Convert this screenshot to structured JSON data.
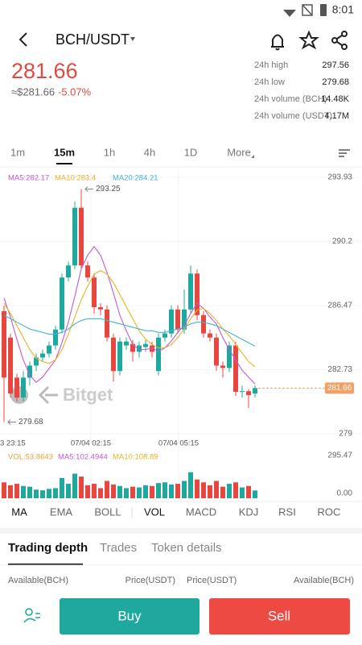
{
  "status_bar": {
    "time": "8:01"
  },
  "header": {
    "pair": "BCH/USDT"
  },
  "price": {
    "last": "281.66",
    "fiat": "≈$281.66",
    "change": "-5.07%"
  },
  "stats": [
    {
      "label": "24h high",
      "value": "297.56"
    },
    {
      "label": "24h low",
      "value": "279.68"
    },
    {
      "label": "24h volume (BCH)",
      "value": "14.48K"
    },
    {
      "label": "24h volume (USDT)",
      "value": "4.17M"
    }
  ],
  "timeframes": [
    "1m",
    "15m",
    "1h",
    "4h",
    "1D",
    "More"
  ],
  "chart_data": {
    "type": "candlestick",
    "up_color": "#1fa89e",
    "down_color": "#e8473f",
    "ylim": [
      279,
      293.93
    ],
    "yticks": [
      279,
      282.73,
      286.47,
      290.2,
      293.93
    ],
    "open": [
      286.14,
      284.6,
      282.27,
      281.11,
      282.27,
      282.97,
      283.44,
      283.67,
      284.14,
      285.07,
      288.1,
      288.8,
      292.16,
      288.8,
      288.1,
      286.37,
      286.24,
      284.6,
      282.65,
      284.14,
      284.23,
      283.77,
      284.05,
      284.14,
      282.65,
      284.6,
      284.84,
      286.24,
      285.07,
      286.24,
      288.33,
      285.91,
      284.84,
      284.6,
      282.97,
      282.83,
      284.14,
      281.44,
      281.48,
      281.34
    ],
    "high": [
      286.47,
      284.84,
      282.5,
      282.65,
      283.21,
      283.67,
      283.9,
      284.37,
      285.3,
      288.33,
      289.03,
      292.53,
      293.25,
      289.03,
      288.33,
      286.6,
      286.47,
      284.84,
      284.6,
      284.6,
      284.46,
      284.37,
      284.46,
      284.37,
      284.84,
      285.07,
      286.47,
      286.47,
      287.4,
      288.8,
      288.57,
      286.14,
      285.07,
      284.84,
      283.21,
      284.37,
      284.37,
      281.81,
      281.6,
      281.81
    ],
    "low": [
      279.68,
      281.11,
      280.87,
      280.87,
      281.81,
      282.65,
      283.21,
      283.44,
      283.9,
      284.84,
      287.87,
      288.57,
      288.57,
      287.87,
      286.0,
      285.91,
      284.37,
      282.04,
      282.4,
      283.9,
      283.21,
      283.44,
      283.77,
      283.44,
      282.4,
      284.37,
      284.6,
      284.84,
      284.84,
      286.0,
      285.6,
      284.6,
      284.37,
      282.65,
      282.27,
      282.6,
      281.2,
      281.11,
      280.5,
      281.11
    ],
    "close": [
      282.27,
      281.34,
      281.11,
      282.27,
      282.97,
      283.44,
      283.67,
      284.14,
      285.07,
      288.1,
      288.8,
      292.16,
      288.8,
      288.1,
      286.37,
      286.24,
      284.6,
      282.65,
      284.37,
      284.37,
      283.77,
      284.14,
      284.23,
      283.77,
      284.6,
      284.84,
      286.24,
      285.07,
      286.24,
      288.33,
      285.91,
      284.84,
      284.6,
      282.97,
      282.83,
      284.14,
      281.44,
      281.48,
      281.25,
      281.66
    ],
    "ma_series": [
      {
        "name": "MA5:282.17",
        "color": "#c05ad8",
        "values": [
          286.9,
          285.8,
          284.5,
          283.3,
          282.4,
          282.0,
          282.3,
          282.8,
          283.3,
          284.3,
          285.5,
          287.0,
          288.6,
          289.4,
          289.9,
          289.4,
          288.4,
          287.2,
          285.9,
          285.0,
          284.2,
          283.9,
          283.9,
          284.0,
          283.8,
          284.0,
          284.4,
          284.9,
          285.3,
          286.0,
          286.6,
          286.3,
          285.8,
          285.4,
          284.6,
          283.9,
          283.3,
          282.7,
          282.3,
          281.9
        ]
      },
      {
        "name": "MA10:283.4",
        "color": "#e6b422",
        "values": [
          286.6,
          286.0,
          285.3,
          284.6,
          283.9,
          283.4,
          283.2,
          283.1,
          283.3,
          283.9,
          284.8,
          285.8,
          286.8,
          287.6,
          288.3,
          288.5,
          288.3,
          287.8,
          287.1,
          286.4,
          285.7,
          285.0,
          284.5,
          284.2,
          284.0,
          284.0,
          284.2,
          284.6,
          285.1,
          285.7,
          286.2,
          286.3,
          286.0,
          285.6,
          285.1,
          284.7,
          284.2,
          283.7,
          283.2,
          282.9
        ]
      },
      {
        "name": "MA20:284.21",
        "color": "#43b3d6",
        "values": [
          285.9,
          285.7,
          285.5,
          285.3,
          285.1,
          285.0,
          284.9,
          284.8,
          284.8,
          284.9,
          285.1,
          285.4,
          285.6,
          285.7,
          285.7,
          285.7,
          285.6,
          285.5,
          285.4,
          285.3,
          285.2,
          285.1,
          285.0,
          285.0,
          284.9,
          284.9,
          285.0,
          285.1,
          285.2,
          285.4,
          285.5,
          285.5,
          285.4,
          285.3,
          285.1,
          284.9,
          284.7,
          284.5,
          284.3,
          284.1
        ]
      }
    ],
    "last_price": 281.66,
    "max_label": 293.25,
    "min_label": 279.68,
    "x_labels": [
      "3 23:15",
      "07/04 02:15",
      "07/04 05:15"
    ],
    "watermark": "Bitget"
  },
  "volume_chart": {
    "type": "bar",
    "ylim": [
      0,
      295.47
    ],
    "yticks": [
      {
        "value": 0,
        "label": "0.00"
      },
      295.47
    ],
    "legend": [
      {
        "name": "VOL:53.8643",
        "color": "#e6a23c"
      },
      {
        "name": "MA5:102.4944",
        "color": "#c05ad8"
      },
      {
        "name": "MA10:108.89",
        "color": "#e6b422"
      }
    ],
    "values": [
      110,
      90,
      100,
      85,
      80,
      60,
      55,
      65,
      70,
      140,
      100,
      170,
      150,
      90,
      100,
      70,
      120,
      95,
      85,
      70,
      80,
      75,
      90,
      85,
      105,
      110,
      95,
      100,
      120,
      180,
      130,
      110,
      90,
      120,
      80,
      100,
      110,
      75,
      85,
      54
    ]
  },
  "indicators": [
    "MA",
    "EMA",
    "BOLL",
    "VOL",
    "MACD",
    "KDJ",
    "RSI",
    "ROC"
  ],
  "tabs": [
    "Trading depth",
    "Trades",
    "Token details"
  ],
  "columns": [
    "Available(BCH)",
    "Price(USDT)",
    "Price(USDT)",
    "Available(BCH)"
  ],
  "buttons": {
    "buy": "Buy",
    "sell": "Sell"
  }
}
